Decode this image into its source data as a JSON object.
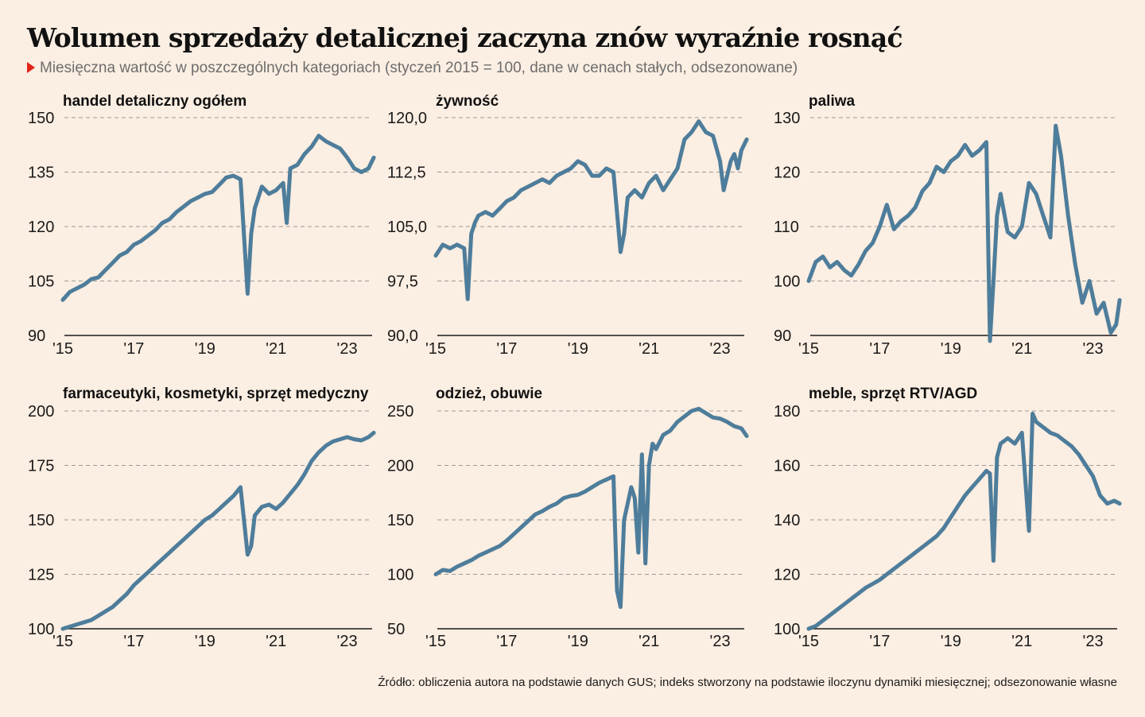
{
  "title": "Wolumen sprzedaży detalicznej zaczyna znów wyraźnie rosnąć",
  "subtitle": "Miesięczna wartość w poszczególnych kategoriach (styczeń 2015 = 100, dane w cenach stałych, odsezonowane)",
  "source": "Źródło: obliczenia autora na podstawie danych GUS; indeks stworzony na podstawie iloczynu dynamiki miesięcznej; odsezonowanie własne",
  "colors": {
    "line": "#4e7d9b",
    "background": "#fbeee2",
    "accent": "#e2231a",
    "grid": "#9a9a9a"
  },
  "chart_data": [
    {
      "type": "line",
      "title": "handel detaliczny ogółem",
      "x_ticks": [
        "'15",
        "'17",
        "'19",
        "'21",
        "'23"
      ],
      "y_ticks": [
        "150",
        "135",
        "120",
        "105",
        "90"
      ],
      "ylim": [
        90,
        150
      ],
      "x": [
        2015.0,
        2015.2,
        2015.4,
        2015.6,
        2015.8,
        2016.0,
        2016.2,
        2016.4,
        2016.6,
        2016.8,
        2017.0,
        2017.2,
        2017.4,
        2017.6,
        2017.8,
        2018.0,
        2018.2,
        2018.4,
        2018.6,
        2018.8,
        2019.0,
        2019.2,
        2019.4,
        2019.6,
        2019.8,
        2020.0,
        2020.2,
        2020.3,
        2020.4,
        2020.6,
        2020.8,
        2021.0,
        2021.2,
        2021.3,
        2021.4,
        2021.6,
        2021.8,
        2022.0,
        2022.2,
        2022.4,
        2022.6,
        2022.8,
        2023.0,
        2023.2,
        2023.4,
        2023.6,
        2023.75
      ],
      "series": [
        {
          "values": [
            99.8,
            102.0,
            103.0,
            104.0,
            105.5,
            106.0,
            108.0,
            110.0,
            112.0,
            113.0,
            115.0,
            116.0,
            117.5,
            119.0,
            121.0,
            122.0,
            124.0,
            125.5,
            127.0,
            128.0,
            129.0,
            129.5,
            131.5,
            133.5,
            134.0,
            133.0,
            101.5,
            118.0,
            125.0,
            131.0,
            129.0,
            130.0,
            132.0,
            121.0,
            136.0,
            137.0,
            140.0,
            142.0,
            145.0,
            143.5,
            142.5,
            141.5,
            139.0,
            136.0,
            135.0,
            136.0,
            139.0
          ]
        }
      ]
    },
    {
      "type": "line",
      "title": "żywność",
      "x_ticks": [
        "'15",
        "'17",
        "'19",
        "'21",
        "'23"
      ],
      "y_ticks": [
        "120,0",
        "112,5",
        "105,0",
        "97,5",
        "90,0"
      ],
      "ylim": [
        90,
        120
      ],
      "x": [
        2015.0,
        2015.2,
        2015.4,
        2015.6,
        2015.8,
        2015.9,
        2016.0,
        2016.1,
        2016.2,
        2016.4,
        2016.6,
        2016.8,
        2017.0,
        2017.2,
        2017.4,
        2017.6,
        2017.8,
        2018.0,
        2018.2,
        2018.4,
        2018.6,
        2018.8,
        2019.0,
        2019.2,
        2019.4,
        2019.6,
        2019.8,
        2020.0,
        2020.2,
        2020.3,
        2020.4,
        2020.6,
        2020.8,
        2021.0,
        2021.2,
        2021.4,
        2021.6,
        2021.8,
        2022.0,
        2022.2,
        2022.4,
        2022.6,
        2022.8,
        2023.0,
        2023.1,
        2023.2,
        2023.3,
        2023.4,
        2023.5,
        2023.6,
        2023.75
      ],
      "series": [
        {
          "values": [
            101.0,
            102.5,
            102.0,
            102.5,
            102.0,
            95.0,
            104.0,
            105.5,
            106.5,
            107.0,
            106.5,
            107.5,
            108.5,
            109.0,
            110.0,
            110.5,
            111.0,
            111.5,
            111.0,
            112.0,
            112.5,
            113.0,
            114.0,
            113.5,
            112.0,
            112.0,
            113.0,
            112.5,
            101.5,
            104.0,
            109.0,
            110.0,
            109.0,
            111.0,
            112.0,
            110.0,
            111.5,
            113.0,
            117.0,
            118.0,
            119.5,
            118.0,
            117.5,
            114.0,
            110.0,
            112.0,
            114.0,
            115.0,
            113.0,
            115.5,
            117.0
          ]
        }
      ]
    },
    {
      "type": "line",
      "title": "paliwa",
      "x_ticks": [
        "'15",
        "'17",
        "'19",
        "'21",
        "'23"
      ],
      "y_ticks": [
        "130",
        "120",
        "110",
        "100",
        "90"
      ],
      "ylim": [
        90,
        130
      ],
      "x": [
        2015.0,
        2015.2,
        2015.4,
        2015.6,
        2015.8,
        2016.0,
        2016.2,
        2016.4,
        2016.6,
        2016.8,
        2017.0,
        2017.2,
        2017.4,
        2017.6,
        2017.8,
        2018.0,
        2018.2,
        2018.4,
        2018.6,
        2018.8,
        2019.0,
        2019.2,
        2019.4,
        2019.6,
        2019.8,
        2020.0,
        2020.1,
        2020.2,
        2020.3,
        2020.4,
        2020.6,
        2020.8,
        2021.0,
        2021.2,
        2021.4,
        2021.6,
        2021.8,
        2021.95,
        2022.1,
        2022.3,
        2022.5,
        2022.7,
        2022.9,
        2023.1,
        2023.3,
        2023.5,
        2023.65,
        2023.75
      ],
      "series": [
        {
          "values": [
            100.0,
            103.5,
            104.5,
            102.5,
            103.5,
            102.0,
            101.0,
            103.0,
            105.5,
            107.0,
            110.0,
            114.0,
            109.5,
            111.0,
            112.0,
            113.5,
            116.5,
            118.0,
            121.0,
            120.0,
            122.0,
            123.0,
            125.0,
            123.0,
            124.0,
            125.5,
            89.0,
            100.0,
            112.0,
            116.0,
            109.0,
            108.0,
            110.0,
            118.0,
            116.0,
            112.0,
            108.0,
            128.5,
            123.0,
            112.0,
            103.0,
            96.0,
            100.0,
            94.0,
            96.0,
            90.5,
            92.0,
            96.5
          ]
        }
      ]
    },
    {
      "type": "line",
      "title": "farmaceutyki, kosmetyki, sprzęt medyczny",
      "x_ticks": [
        "'15",
        "'17",
        "'19",
        "'21",
        "'23"
      ],
      "y_ticks": [
        "200",
        "175",
        "150",
        "125",
        "100"
      ],
      "ylim": [
        100,
        200
      ],
      "x": [
        2015.0,
        2015.2,
        2015.4,
        2015.6,
        2015.8,
        2016.0,
        2016.2,
        2016.4,
        2016.6,
        2016.8,
        2017.0,
        2017.2,
        2017.4,
        2017.6,
        2017.8,
        2018.0,
        2018.2,
        2018.4,
        2018.6,
        2018.8,
        2019.0,
        2019.2,
        2019.4,
        2019.6,
        2019.8,
        2020.0,
        2020.2,
        2020.3,
        2020.4,
        2020.6,
        2020.8,
        2021.0,
        2021.2,
        2021.4,
        2021.6,
        2021.8,
        2022.0,
        2022.2,
        2022.4,
        2022.6,
        2022.8,
        2023.0,
        2023.2,
        2023.4,
        2023.6,
        2023.75
      ],
      "series": [
        {
          "values": [
            100.0,
            101.0,
            102.0,
            103.0,
            104.0,
            106.0,
            108.0,
            110.0,
            113.0,
            116.0,
            120.0,
            123.0,
            126.0,
            129.0,
            132.0,
            135.0,
            138.0,
            141.0,
            144.0,
            147.0,
            150.0,
            152.0,
            155.0,
            158.0,
            161.0,
            165.0,
            134.0,
            138.0,
            152.0,
            156.0,
            157.0,
            155.0,
            158.0,
            162.0,
            166.0,
            171.0,
            177.0,
            181.0,
            184.0,
            186.0,
            187.0,
            188.0,
            187.0,
            186.5,
            188.0,
            190.0
          ]
        }
      ]
    },
    {
      "type": "line",
      "title": "odzież, obuwie",
      "x_ticks": [
        "'15",
        "'17",
        "'19",
        "'21",
        "'23"
      ],
      "y_ticks": [
        "250",
        "200",
        "150",
        "100",
        "50"
      ],
      "ylim": [
        50,
        250
      ],
      "x": [
        2015.0,
        2015.2,
        2015.4,
        2015.6,
        2015.8,
        2016.0,
        2016.2,
        2016.4,
        2016.6,
        2016.8,
        2017.0,
        2017.2,
        2017.4,
        2017.6,
        2017.8,
        2018.0,
        2018.2,
        2018.4,
        2018.6,
        2018.8,
        2019.0,
        2019.2,
        2019.4,
        2019.6,
        2019.8,
        2020.0,
        2020.1,
        2020.2,
        2020.3,
        2020.5,
        2020.6,
        2020.7,
        2020.8,
        2020.9,
        2021.0,
        2021.1,
        2021.2,
        2021.4,
        2021.6,
        2021.8,
        2022.0,
        2022.2,
        2022.4,
        2022.6,
        2022.8,
        2023.0,
        2023.2,
        2023.4,
        2023.6,
        2023.75
      ],
      "series": [
        {
          "values": [
            100.0,
            104.0,
            103.0,
            107.0,
            110.0,
            113.0,
            117.0,
            120.0,
            123.0,
            126.0,
            131.0,
            137.0,
            143.0,
            149.0,
            155.0,
            158.0,
            162.0,
            165.0,
            170.0,
            172.0,
            173.0,
            176.0,
            180.0,
            184.0,
            187.0,
            190.0,
            85.0,
            70.0,
            150.0,
            180.0,
            170.0,
            120.0,
            210.0,
            110.0,
            200.0,
            220.0,
            215.0,
            228.0,
            232.0,
            240.0,
            245.0,
            250.0,
            252.0,
            248.0,
            244.0,
            243.0,
            240.0,
            236.0,
            234.0,
            227.0
          ]
        }
      ]
    },
    {
      "type": "line",
      "title": "meble, sprzęt RTV/AGD",
      "x_ticks": [
        "'15",
        "'17",
        "'19",
        "'21",
        "'23"
      ],
      "y_ticks": [
        "180",
        "160",
        "140",
        "120",
        "100"
      ],
      "ylim": [
        100,
        180
      ],
      "x": [
        2015.0,
        2015.2,
        2015.4,
        2015.6,
        2015.8,
        2016.0,
        2016.2,
        2016.4,
        2016.6,
        2016.8,
        2017.0,
        2017.2,
        2017.4,
        2017.6,
        2017.8,
        2018.0,
        2018.2,
        2018.4,
        2018.6,
        2018.8,
        2019.0,
        2019.2,
        2019.4,
        2019.6,
        2019.8,
        2020.0,
        2020.1,
        2020.2,
        2020.3,
        2020.4,
        2020.6,
        2020.8,
        2021.0,
        2021.2,
        2021.3,
        2021.4,
        2021.6,
        2021.8,
        2022.0,
        2022.2,
        2022.4,
        2022.6,
        2022.8,
        2023.0,
        2023.2,
        2023.4,
        2023.6,
        2023.75
      ],
      "series": [
        {
          "values": [
            100.0,
            101.0,
            103.0,
            105.0,
            107.0,
            109.0,
            111.0,
            113.0,
            115.0,
            116.5,
            118.0,
            120.0,
            122.0,
            124.0,
            126.0,
            128.0,
            130.0,
            132.0,
            134.0,
            137.0,
            141.0,
            145.0,
            149.0,
            152.0,
            155.0,
            158.0,
            157.0,
            125.0,
            163.0,
            168.0,
            170.0,
            168.0,
            172.0,
            136.0,
            179.0,
            176.0,
            174.0,
            172.0,
            171.0,
            169.0,
            167.0,
            164.0,
            160.0,
            156.0,
            149.0,
            146.0,
            147.0,
            146.0
          ]
        }
      ]
    }
  ]
}
